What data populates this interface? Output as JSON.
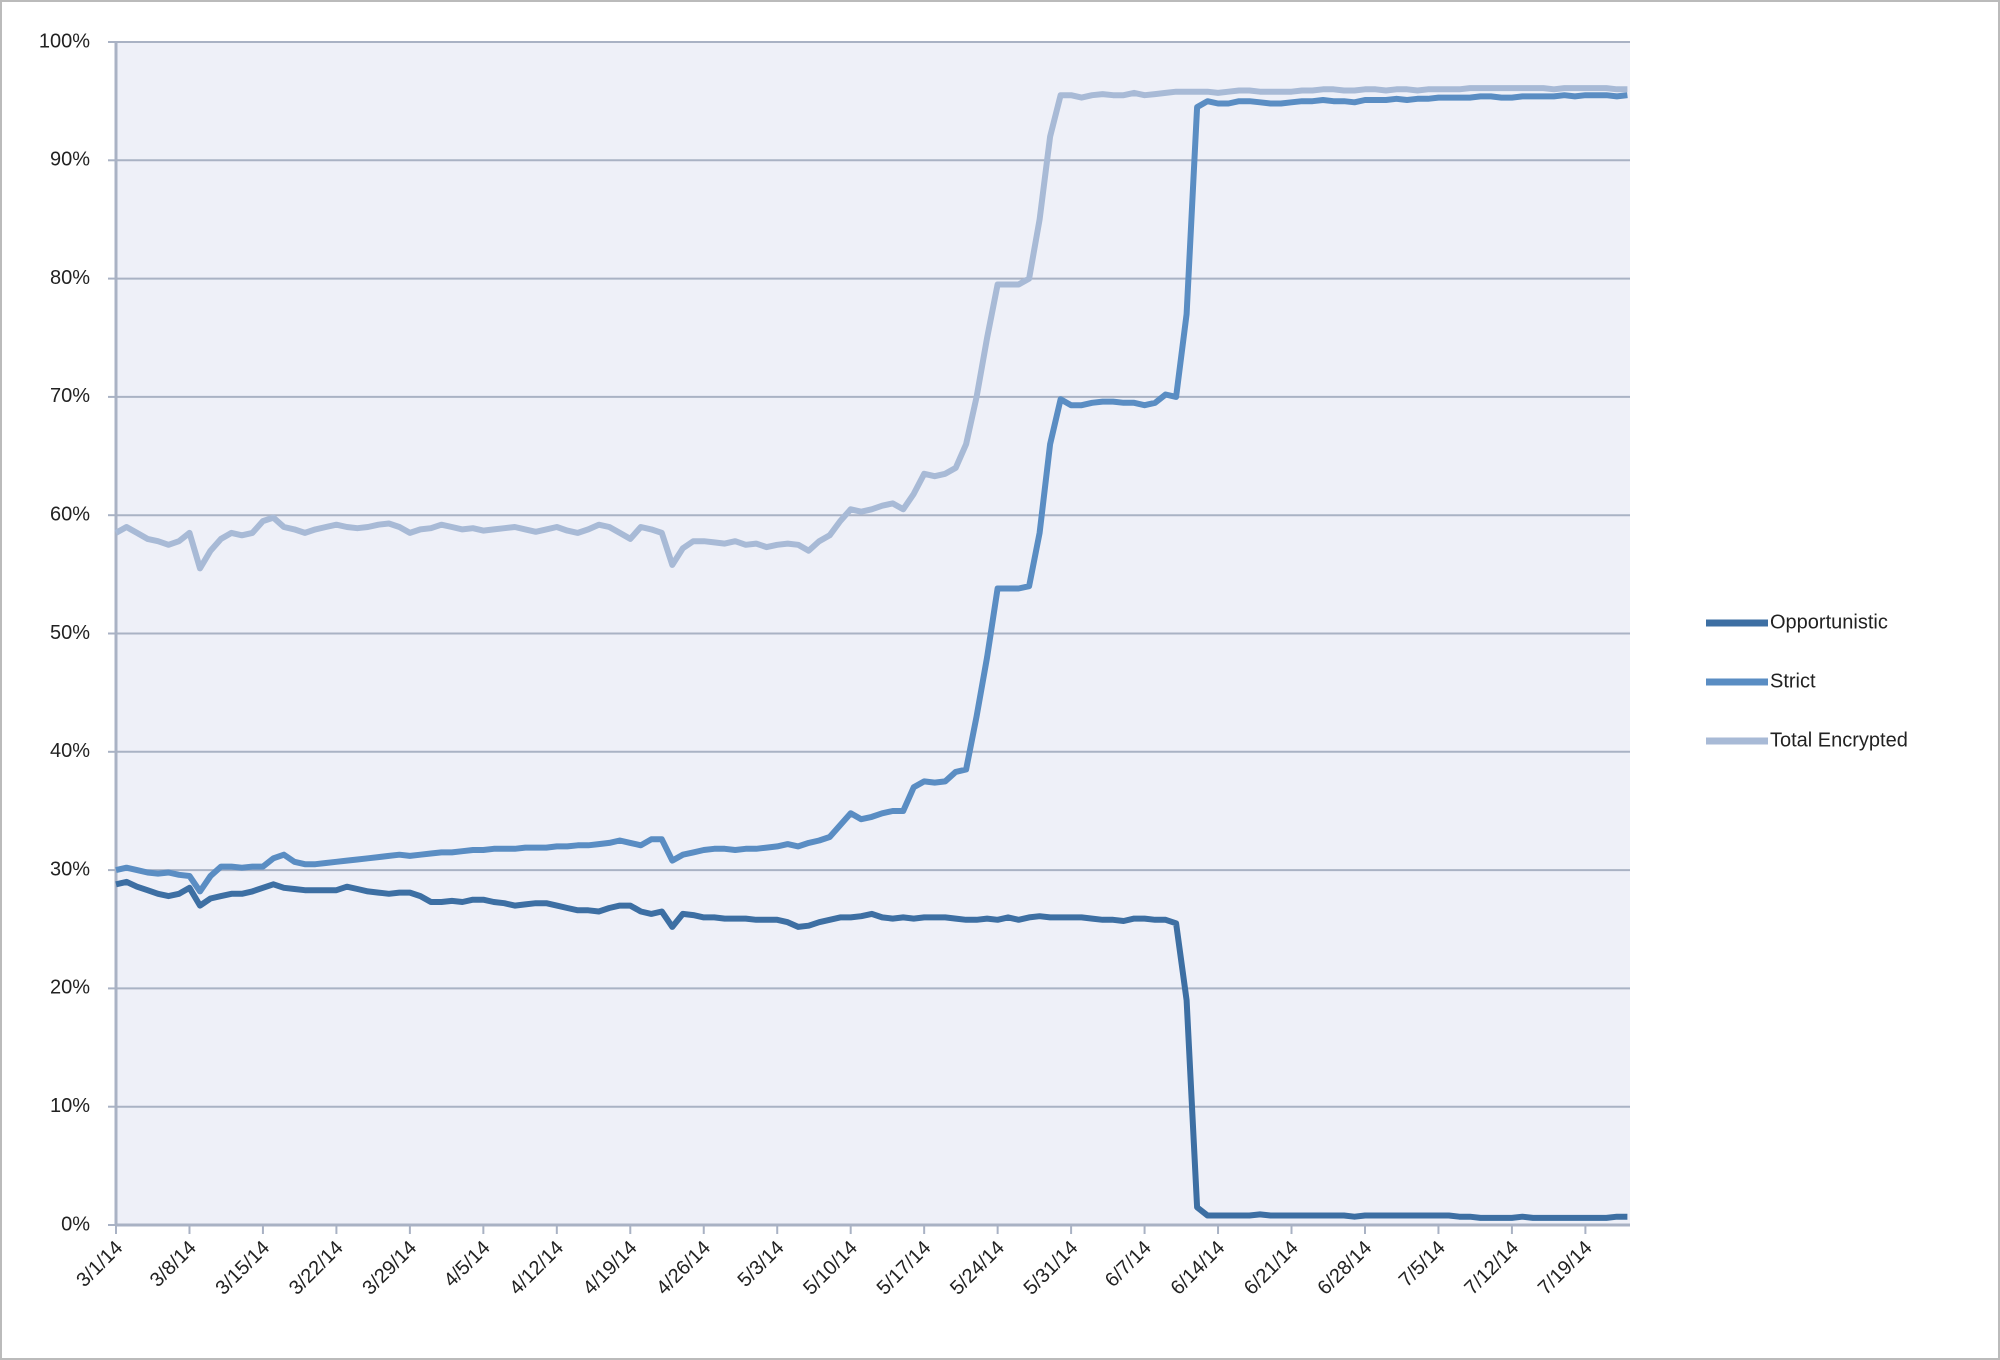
{
  "chart_data": {
    "type": "line",
    "categories": [
      "3/1/14",
      null,
      null,
      null,
      null,
      null,
      null,
      "3/8/14",
      null,
      null,
      null,
      null,
      null,
      null,
      "3/15/14",
      null,
      null,
      null,
      null,
      null,
      null,
      "3/22/14",
      null,
      null,
      null,
      null,
      null,
      null,
      "3/29/14",
      null,
      null,
      null,
      null,
      null,
      null,
      "4/5/14",
      null,
      null,
      null,
      null,
      null,
      null,
      "4/12/14",
      null,
      null,
      null,
      null,
      null,
      null,
      "4/19/14",
      null,
      null,
      null,
      null,
      null,
      null,
      "4/26/14",
      null,
      null,
      null,
      null,
      null,
      null,
      "5/3/14",
      null,
      null,
      null,
      null,
      null,
      null,
      "5/10/14",
      null,
      null,
      null,
      null,
      null,
      null,
      "5/17/14",
      null,
      null,
      null,
      null,
      null,
      null,
      "5/24/14",
      null,
      null,
      null,
      null,
      null,
      null,
      "5/31/14",
      null,
      null,
      null,
      null,
      null,
      null,
      "6/7/14",
      null,
      null,
      null,
      null,
      null,
      null,
      "6/14/14",
      null,
      null,
      null,
      null,
      null,
      null,
      "6/21/14",
      null,
      null,
      null,
      null,
      null,
      null,
      "6/28/14",
      null,
      null,
      null,
      null,
      null,
      null,
      "7/5/14",
      null,
      null,
      null,
      null,
      null,
      null,
      "7/12/14",
      null,
      null,
      null,
      null,
      null,
      null,
      "7/19/14",
      null,
      null,
      null,
      null
    ],
    "series": [
      {
        "name": "Opportunistic",
        "color": "#3d6fa3",
        "values": [
          28.8,
          29,
          28.6,
          28.3,
          28,
          27.8,
          28,
          28.5,
          27,
          27.6,
          27.8,
          28,
          28,
          28.2,
          28.5,
          28.8,
          28.5,
          28.4,
          28.3,
          28.3,
          28.3,
          28.3,
          28.6,
          28.4,
          28.2,
          28.1,
          28,
          28.1,
          28.1,
          27.8,
          27.3,
          27.3,
          27.4,
          27.3,
          27.5,
          27.5,
          27.3,
          27.2,
          27,
          27.1,
          27.2,
          27.2,
          27,
          26.8,
          26.6,
          26.6,
          26.5,
          26.8,
          27,
          27,
          26.5,
          26.3,
          26.5,
          25.2,
          26.3,
          26.2,
          26,
          26,
          25.9,
          25.9,
          25.9,
          25.8,
          25.8,
          25.8,
          25.6,
          25.2,
          25.3,
          25.6,
          25.8,
          26,
          26,
          26.1,
          26.3,
          26,
          25.9,
          26,
          25.9,
          26,
          26,
          26,
          25.9,
          25.8,
          25.8,
          25.9,
          25.8,
          26,
          25.8,
          26,
          26.1,
          26,
          26,
          26,
          26,
          25.9,
          25.8,
          25.8,
          25.7,
          25.9,
          25.9,
          25.8,
          25.8,
          25.5,
          19,
          1.5,
          0.8,
          0.8,
          0.8,
          0.8,
          0.8,
          0.9,
          0.8,
          0.8,
          0.8,
          0.8,
          0.8,
          0.8,
          0.8,
          0.8,
          0.7,
          0.8,
          0.8,
          0.8,
          0.8,
          0.8,
          0.8,
          0.8,
          0.8,
          0.8,
          0.7,
          0.7,
          0.6,
          0.6,
          0.6,
          0.6,
          0.7,
          0.6,
          0.6,
          0.6,
          0.6,
          0.6,
          0.6,
          0.6,
          0.6,
          0.7,
          0.7
        ]
      },
      {
        "name": "Strict",
        "color": "#5a8dc3",
        "values": [
          30,
          30.2,
          30,
          29.8,
          29.7,
          29.8,
          29.6,
          29.5,
          28.2,
          29.5,
          30.3,
          30.3,
          30.2,
          30.3,
          30.3,
          31,
          31.3,
          30.7,
          30.5,
          30.5,
          30.6,
          30.7,
          30.8,
          30.9,
          31,
          31.1,
          31.2,
          31.3,
          31.2,
          31.3,
          31.4,
          31.5,
          31.5,
          31.6,
          31.7,
          31.7,
          31.8,
          31.8,
          31.8,
          31.9,
          31.9,
          31.9,
          32,
          32,
          32.1,
          32.1,
          32.2,
          32.3,
          32.5,
          32.3,
          32.1,
          32.6,
          32.6,
          30.8,
          31.3,
          31.5,
          31.7,
          31.8,
          31.8,
          31.7,
          31.8,
          31.8,
          31.9,
          32,
          32.2,
          32,
          32.3,
          32.5,
          32.8,
          33.8,
          34.8,
          34.3,
          34.5,
          34.8,
          35,
          35,
          37,
          37.5,
          37.4,
          37.5,
          38.3,
          38.5,
          43,
          48,
          53.8,
          53.8,
          53.8,
          54,
          58.5,
          66,
          69.8,
          69.3,
          69.3,
          69.5,
          69.6,
          69.6,
          69.5,
          69.5,
          69.3,
          69.5,
          70.2,
          70,
          77,
          94.5,
          95,
          94.8,
          94.8,
          95,
          95,
          94.9,
          94.8,
          94.8,
          94.9,
          95,
          95,
          95.1,
          95,
          95,
          94.9,
          95.1,
          95.1,
          95.1,
          95.2,
          95.1,
          95.2,
          95.2,
          95.3,
          95.3,
          95.3,
          95.3,
          95.4,
          95.4,
          95.3,
          95.3,
          95.4,
          95.4,
          95.4,
          95.4,
          95.5,
          95.4,
          95.5,
          95.5,
          95.5,
          95.4,
          95.5
        ]
      },
      {
        "name": "Total Encrypted",
        "color": "#a8bad6",
        "values": [
          58.5,
          59,
          58.5,
          58,
          57.8,
          57.5,
          57.8,
          58.5,
          55.5,
          57,
          58,
          58.5,
          58.3,
          58.5,
          59.5,
          59.8,
          59,
          58.8,
          58.5,
          58.8,
          59,
          59.2,
          59,
          58.9,
          59,
          59.2,
          59.3,
          59,
          58.5,
          58.8,
          58.9,
          59.2,
          59,
          58.8,
          58.9,
          58.7,
          58.8,
          58.9,
          59,
          58.8,
          58.6,
          58.8,
          59,
          58.7,
          58.5,
          58.8,
          59.2,
          59,
          58.5,
          58,
          59,
          58.8,
          58.5,
          55.8,
          57.2,
          57.8,
          57.8,
          57.7,
          57.6,
          57.8,
          57.5,
          57.6,
          57.3,
          57.5,
          57.6,
          57.5,
          57,
          57.8,
          58.3,
          59.5,
          60.5,
          60.3,
          60.5,
          60.8,
          61,
          60.5,
          61.8,
          63.5,
          63.3,
          63.5,
          64,
          66,
          70,
          75,
          79.5,
          79.5,
          79.5,
          80,
          85,
          92,
          95.5,
          95.5,
          95.3,
          95.5,
          95.6,
          95.5,
          95.5,
          95.7,
          95.5,
          95.6,
          95.7,
          95.8,
          95.8,
          95.8,
          95.8,
          95.7,
          95.8,
          95.9,
          95.9,
          95.8,
          95.8,
          95.8,
          95.8,
          95.9,
          95.9,
          96,
          96,
          95.9,
          95.9,
          96,
          96,
          95.9,
          96,
          96,
          95.9,
          96,
          96,
          96,
          96,
          96.1,
          96.1,
          96.1,
          96.1,
          96.1,
          96.1,
          96.1,
          96.1,
          96,
          96.1,
          96.1,
          96.1,
          96.1,
          96.1,
          96,
          96
        ]
      }
    ],
    "ylim": [
      0,
      100
    ],
    "yticks": [
      {
        "value": 0,
        "label": "0%"
      },
      {
        "value": 10,
        "label": "10%"
      },
      {
        "value": 20,
        "label": "20%"
      },
      {
        "value": 30,
        "label": "30%"
      },
      {
        "value": 40,
        "label": "40%"
      },
      {
        "value": 50,
        "label": "50%"
      },
      {
        "value": 60,
        "label": "60%"
      },
      {
        "value": 70,
        "label": "70%"
      },
      {
        "value": 80,
        "label": "80%"
      },
      {
        "value": 90,
        "label": "90%"
      },
      {
        "value": 100,
        "label": "100%"
      }
    ],
    "grid": true,
    "legend": "right"
  }
}
